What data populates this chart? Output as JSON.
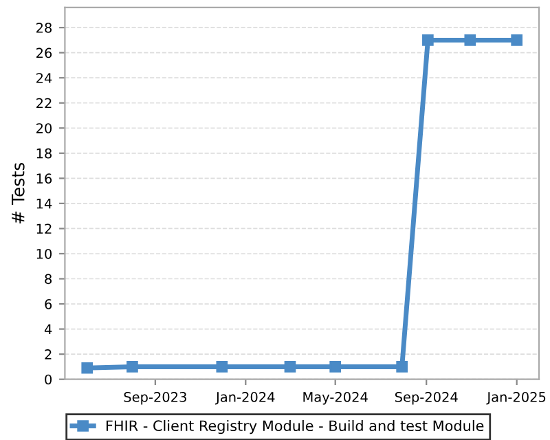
{
  "chart_data": {
    "type": "line",
    "ylabel": "# Tests",
    "x": [
      "2023-06-01",
      "2023-08-01",
      "2023-11-30",
      "2024-03-01",
      "2024-05-01",
      "2024-07-30",
      "2024-09-03",
      "2024-10-30",
      "2025-01-01"
    ],
    "series": [
      {
        "name": "FHIR - Client Registry Module - Build and test Module",
        "color": "#4a8ac6",
        "values": [
          0.9,
          1,
          1,
          1,
          1,
          1,
          27,
          27,
          27
        ]
      }
    ],
    "xlim": [
      "2023-05-02",
      "2025-01-31"
    ],
    "xticks": [
      {
        "value": "2023-09-01",
        "label": "Sep-2023"
      },
      {
        "value": "2024-01-01",
        "label": "Jan-2024"
      },
      {
        "value": "2024-05-01",
        "label": "May-2024"
      },
      {
        "value": "2024-09-01",
        "label": "Sep-2024"
      },
      {
        "value": "2025-01-01",
        "label": "Jan-2025"
      }
    ],
    "ylim": [
      0,
      29.6
    ],
    "yticks": [
      0,
      2,
      4,
      6,
      8,
      10,
      12,
      14,
      16,
      18,
      20,
      22,
      24,
      26,
      28
    ],
    "grid": "y",
    "legend": "bottom",
    "marker": "square",
    "line_style": "solid"
  }
}
